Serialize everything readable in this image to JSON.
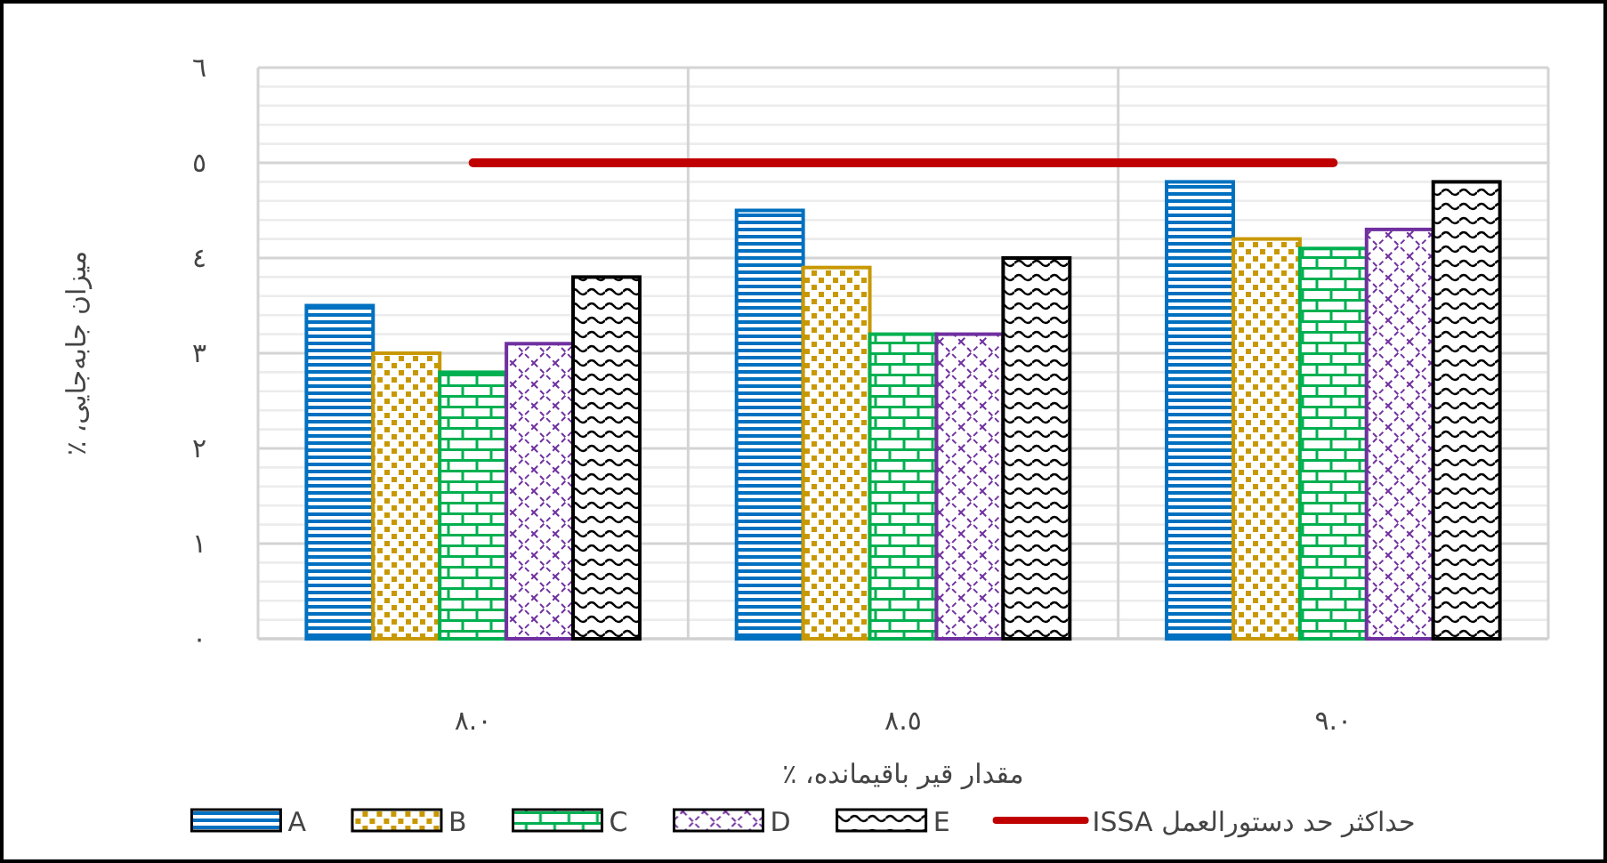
{
  "chart_data": {
    "type": "bar",
    "xlabel": "مقدار قیر باقیمانده، ٪",
    "ylabel": "میزان جابه‌جایی، ٪",
    "categories": [
      "٨.٠",
      "٨.٥",
      "٩.٠"
    ],
    "series": [
      {
        "name": "A",
        "color": "#0070c0",
        "values": [
          3.5,
          4.5,
          4.8
        ]
      },
      {
        "name": "B",
        "color": "#c89800",
        "values": [
          3.0,
          3.9,
          4.2
        ]
      },
      {
        "name": "C",
        "color": "#00b050",
        "values": [
          2.8,
          3.2,
          4.1
        ]
      },
      {
        "name": "D",
        "color": "#7030a0",
        "values": [
          3.1,
          3.2,
          4.3
        ]
      },
      {
        "name": "E",
        "color": "#000000",
        "values": [
          3.8,
          4.0,
          4.8
        ]
      },
      {
        "name": "حداکثر حد دستورالعمل ISSA",
        "type": "line",
        "color": "#c00000",
        "values": [
          5,
          5,
          5
        ]
      }
    ],
    "ylim": [
      0,
      6
    ],
    "yticks": [
      {
        "value": 0,
        "label": "٠"
      },
      {
        "value": 1,
        "label": "١"
      },
      {
        "value": 2,
        "label": "٢"
      },
      {
        "value": 3,
        "label": "٣"
      },
      {
        "value": 4,
        "label": "٤"
      },
      {
        "value": 5,
        "label": "٥"
      },
      {
        "value": 6,
        "label": "٦"
      }
    ],
    "grid": true,
    "legend": "bottom"
  }
}
